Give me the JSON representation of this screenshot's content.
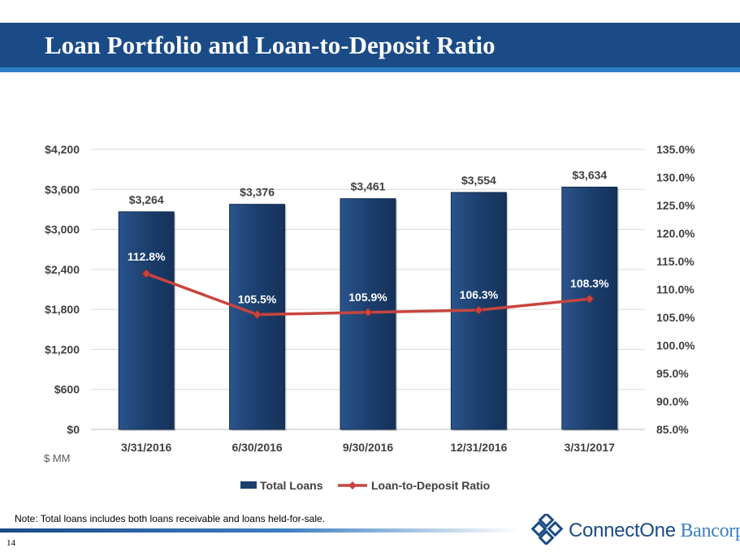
{
  "slide": {
    "title": "Loan Portfolio and Loan-to-Deposit Ratio",
    "unit_label": "$ MM",
    "note_prefix": "Note:",
    "note_text": " Total loans includes both loans receivable and loans held-for-sale.",
    "page_number": "14",
    "logo_part1": "ConnectOne",
    "logo_part2": " Bancorp"
  },
  "colors": {
    "title_bar": "#1a4b86",
    "bar_fill": "#1c3f6e",
    "line": "#c8453e"
  },
  "chart_data": {
    "type": "bar",
    "categories": [
      "3/31/2016",
      "6/30/2016",
      "9/30/2016",
      "12/31/2016",
      "3/31/2017"
    ],
    "series": [
      {
        "name": "Total Loans",
        "type": "bar",
        "axis": "left",
        "values": [
          3264,
          3376,
          3461,
          3554,
          3634
        ],
        "labels": [
          "$3,264",
          "$3,376",
          "$3,461",
          "$3,554",
          "$3,634"
        ]
      },
      {
        "name": "Loan-to-Deposit Ratio",
        "type": "line",
        "axis": "right",
        "values": [
          112.8,
          105.5,
          105.9,
          106.3,
          108.3
        ],
        "labels": [
          "112.8%",
          "105.5%",
          "105.9%",
          "106.3%",
          "108.3%"
        ]
      }
    ],
    "y_left": {
      "range": [
        0,
        4200
      ],
      "ticks": [
        0,
        600,
        1200,
        1800,
        2400,
        3000,
        3600,
        4200
      ],
      "tick_labels": [
        "$0",
        "$600",
        "$1,200",
        "$1,800",
        "$2,400",
        "$3,000",
        "$3,600",
        "$4,200"
      ]
    },
    "y_right": {
      "range": [
        85,
        135
      ],
      "ticks": [
        85,
        90,
        95,
        100,
        105,
        110,
        115,
        120,
        125,
        130,
        135
      ],
      "tick_labels": [
        "85.0%",
        "90.0%",
        "95.0%",
        "100.0%",
        "105.0%",
        "110.0%",
        "115.0%",
        "120.0%",
        "125.0%",
        "130.0%",
        "135.0%"
      ]
    },
    "grid": true,
    "legend_position": "bottom"
  }
}
